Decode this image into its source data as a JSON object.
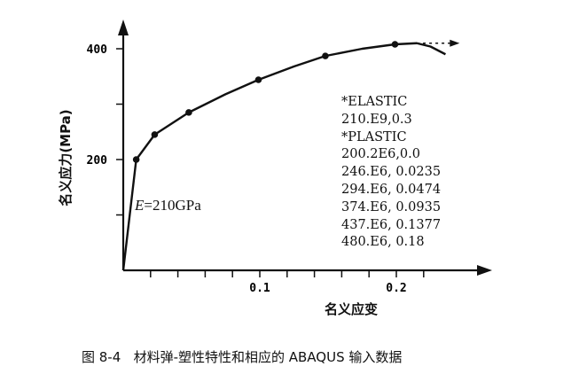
{
  "chart_data": {
    "type": "line",
    "title": "",
    "xlabel": "名义应变",
    "ylabel": "名义应力(MPa)",
    "xlim": [
      0,
      0.25
    ],
    "ylim": [
      0,
      450
    ],
    "x_tick_labels": [
      {
        "value": 0.1,
        "label": "0.1"
      },
      {
        "value": 0.2,
        "label": "0.2"
      }
    ],
    "x_minor_ticks": [
      0.02,
      0.04,
      0.06,
      0.08,
      0.1,
      0.12,
      0.14,
      0.16,
      0.18,
      0.2,
      0.22
    ],
    "y_tick_labels": [
      {
        "value": 200,
        "label": "200"
      },
      {
        "value": 400,
        "label": "400"
      }
    ],
    "y_minor_ticks": [
      100,
      200,
      300,
      400
    ],
    "grid": false,
    "series": [
      {
        "curve": [
          [
            0,
            0
          ],
          [
            0.0095,
            200
          ],
          [
            0.023,
            245
          ],
          [
            0.048,
            285
          ],
          [
            0.075,
            318
          ],
          [
            0.099,
            344
          ],
          [
            0.125,
            368
          ],
          [
            0.148,
            387
          ],
          [
            0.175,
            400
          ],
          [
            0.199,
            408
          ],
          [
            0.215,
            410
          ],
          [
            0.225,
            404
          ],
          [
            0.236,
            390
          ]
        ],
        "markers": [
          [
            0.0095,
            200
          ],
          [
            0.023,
            245
          ],
          [
            0.048,
            285
          ],
          [
            0.099,
            344
          ],
          [
            0.148,
            387
          ],
          [
            0.199,
            408
          ]
        ]
      }
    ],
    "dashed_extension": [
      [
        0.215,
        410
      ],
      [
        0.245,
        410
      ]
    ],
    "annotations": {
      "modulus": {
        "symbol": "E",
        "text": "=210GPa"
      },
      "input_listing": [
        "*ELASTIC",
        "210.E9,0.3",
        "*PLASTIC",
        "200.2E6,0.0",
        "246.E6, 0.0235",
        "294.E6, 0.0474",
        "374.E6, 0.0935",
        "437.E6, 0.1377",
        "480.E6, 0.18"
      ]
    },
    "caption": "图 8-4   材料弹-塑性特性和相应的 ABAQUS 输入数据"
  }
}
